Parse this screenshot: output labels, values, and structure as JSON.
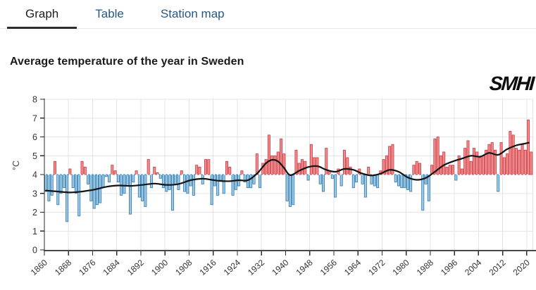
{
  "tabs": [
    {
      "label": "Graph",
      "active": true
    },
    {
      "label": "Table",
      "active": false
    },
    {
      "label": "Station map",
      "active": false
    }
  ],
  "page": {
    "title": "Average temperature of the year in Sweden",
    "logo": "SMHI"
  },
  "chart_data": {
    "type": "bar",
    "title": "Average temperature of the year in Sweden",
    "ylabel": "°C",
    "ylim": [
      0,
      8
    ],
    "yticks": [
      0,
      1,
      2,
      3,
      4,
      5,
      6,
      7,
      8
    ],
    "xticks": [
      1860,
      1868,
      1876,
      1884,
      1892,
      1900,
      1908,
      1916,
      1924,
      1932,
      1940,
      1948,
      1956,
      1964,
      1972,
      1980,
      1988,
      1996,
      2004,
      2012,
      2020
    ],
    "baseline": 4,
    "grid": true,
    "legend_position": "none",
    "start_year": 1860,
    "end_year": 2021,
    "values": [
      3.1,
      2.6,
      2.9,
      4.7,
      2.4,
      3.0,
      3.3,
      1.5,
      4.3,
      3.3,
      3.0,
      1.8,
      4.7,
      4.4,
      3.5,
      2.6,
      2.2,
      2.4,
      2.5,
      3.3,
      3.9,
      3.6,
      4.5,
      4.2,
      3.6,
      2.9,
      3.0,
      3.4,
      1.9,
      3.6,
      4.2,
      2.8,
      2.6,
      2.3,
      4.8,
      3.3,
      4.4,
      4.1,
      3.8,
      3.3,
      3.1,
      3.2,
      2.1,
      3.5,
      3.2,
      4.2,
      3.1,
      3.0,
      3.4,
      2.9,
      4.5,
      4.4,
      3.5,
      4.8,
      4.8,
      2.4,
      3.4,
      2.9,
      3.7,
      3.0,
      4.7,
      4.4,
      2.9,
      3.2,
      3.4,
      4.2,
      3.6,
      3.3,
      3.3,
      3.5,
      5.1,
      3.3,
      4.6,
      4.8,
      6.1,
      5.0,
      5.0,
      5.2,
      5.9,
      5.1,
      2.6,
      2.3,
      2.4,
      5.3,
      4.6,
      4.8,
      4.7,
      3.7,
      5.6,
      4.9,
      4.9,
      3.5,
      3.1,
      5.4,
      4.2,
      3.8,
      2.8,
      4.3,
      3.4,
      5.3,
      4.9,
      4.4,
      3.3,
      3.6,
      4.3,
      3.5,
      2.8,
      4.4,
      3.5,
      3.4,
      3.3,
      4.2,
      4.8,
      5.0,
      5.5,
      5.6,
      3.6,
      3.4,
      3.3,
      3.3,
      3.2,
      3.1,
      4.5,
      4.7,
      4.6,
      2.1,
      3.5,
      2.6,
      4.5,
      5.9,
      6.0,
      5.0,
      5.2,
      4.4,
      4.5,
      4.5,
      3.7,
      5.0,
      4.3,
      5.4,
      5.8,
      4.7,
      5.4,
      5.2,
      4.9,
      5.0,
      5.3,
      5.6,
      5.7,
      5.3,
      3.1,
      5.7,
      4.9,
      5.1,
      6.3,
      6.1,
      5.4,
      5.3,
      5.6,
      5.3,
      6.9,
      5.2
    ],
    "trend": {
      "name": "smoothed-trend",
      "points": [
        [
          1860,
          3.15
        ],
        [
          1864,
          3.1
        ],
        [
          1868,
          3.05
        ],
        [
          1872,
          3.1
        ],
        [
          1876,
          3.2
        ],
        [
          1880,
          3.35
        ],
        [
          1884,
          3.42
        ],
        [
          1888,
          3.4
        ],
        [
          1892,
          3.45
        ],
        [
          1896,
          3.52
        ],
        [
          1900,
          3.45
        ],
        [
          1904,
          3.5
        ],
        [
          1908,
          3.7
        ],
        [
          1912,
          3.78
        ],
        [
          1915,
          3.72
        ],
        [
          1918,
          3.66
        ],
        [
          1921,
          3.65
        ],
        [
          1924,
          3.7
        ],
        [
          1927,
          3.7
        ],
        [
          1930,
          4.05
        ],
        [
          1933,
          4.6
        ],
        [
          1935,
          4.78
        ],
        [
          1937,
          4.7
        ],
        [
          1939,
          4.35
        ],
        [
          1941,
          3.97
        ],
        [
          1944,
          4.2
        ],
        [
          1947,
          4.4
        ],
        [
          1950,
          4.45
        ],
        [
          1953,
          4.25
        ],
        [
          1956,
          4.15
        ],
        [
          1959,
          4.3
        ],
        [
          1962,
          4.25
        ],
        [
          1965,
          4.05
        ],
        [
          1968,
          3.95
        ],
        [
          1971,
          4.05
        ],
        [
          1974,
          4.25
        ],
        [
          1977,
          4.15
        ],
        [
          1980,
          3.85
        ],
        [
          1983,
          3.72
        ],
        [
          1986,
          3.82
        ],
        [
          1989,
          4.15
        ],
        [
          1992,
          4.5
        ],
        [
          1995,
          4.7
        ],
        [
          1998,
          4.85
        ],
        [
          2001,
          5.0
        ],
        [
          2004,
          4.95
        ],
        [
          2007,
          5.15
        ],
        [
          2010,
          5.05
        ],
        [
          2013,
          5.35
        ],
        [
          2016,
          5.55
        ],
        [
          2019,
          5.65
        ]
      ],
      "dashed_tail": [
        [
          2019,
          5.65
        ],
        [
          2021.5,
          5.72
        ]
      ]
    },
    "colors": {
      "above_fill": "#f28b8c",
      "above_stroke": "#c93a42",
      "below_fill": "#9ecae1",
      "below_stroke": "#2f78b3",
      "trend": "#141414",
      "grid": "#e4e4e4",
      "axis": "#2b2b2b",
      "axis_bottom": "#4a4a4a",
      "tick_text": "#333333",
      "baseline_dash_on_bars": "#ffffff",
      "baseline_dash_on_bg": "#d9d9d9"
    }
  }
}
